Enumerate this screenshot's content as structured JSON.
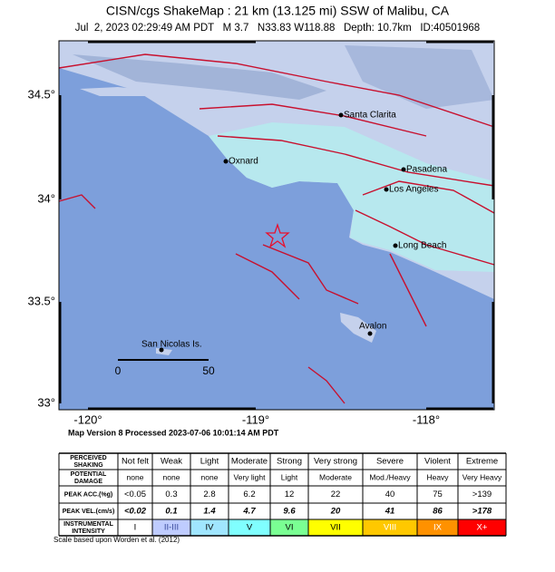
{
  "header": {
    "title": "CISN/cgs ShakeMap : 21 km (13.125 mi) SSW of Malibu, CA",
    "subtitle": "Jul  2, 2023 02:29:49 AM PDT   M 3.7   N33.83 W118.88   Depth: 10.7km   ID:40501968"
  },
  "map": {
    "lat_labels": [
      "34.5°",
      "34°",
      "33.5°",
      "33°"
    ],
    "lon_labels": [
      "-120°",
      "-119°",
      "-118°"
    ],
    "places": [
      "Santa Clarita",
      "Oxnard",
      "Pasadena",
      "Los Angeles",
      "Long Beach",
      "Avalon",
      "San Nicolas Is."
    ],
    "scale": [
      "0",
      "50"
    ],
    "footer": "Map Version 8 Processed 2023-07-06 10:01:14 AM PDT"
  },
  "legend": {
    "columns": [
      "Not felt",
      "Weak",
      "Light",
      "Moderate",
      "Strong",
      "Very strong",
      "Severe",
      "Violent",
      "Extreme"
    ],
    "rows": [
      {
        "label": "POTENTIAL DAMAGE",
        "cells": [
          "none",
          "none",
          "none",
          "Very light",
          "Light",
          "Moderate",
          "Mod./Heavy",
          "Heavy",
          "Very Heavy"
        ]
      },
      {
        "label": "PEAK ACC.(%g)",
        "cells": [
          "<0.05",
          "0.3",
          "2.8",
          "6.2",
          "12",
          "22",
          "40",
          "75",
          ">139"
        ]
      },
      {
        "label": "PEAK VEL.(cm/s)",
        "cells": [
          "<0.02",
          "0.1",
          "1.4",
          "4.7",
          "9.6",
          "20",
          "41",
          "86",
          ">178"
        ]
      },
      {
        "label": "INSTRUMENTAL INTENSITY",
        "cells": [
          "I",
          "II-III",
          "IV",
          "V",
          "VI",
          "VII",
          "VIII",
          "IX",
          "X+"
        ]
      }
    ],
    "header_label": "PERCEIVED SHAKING",
    "note": "Scale based upon Worden et al. (2012)"
  }
}
